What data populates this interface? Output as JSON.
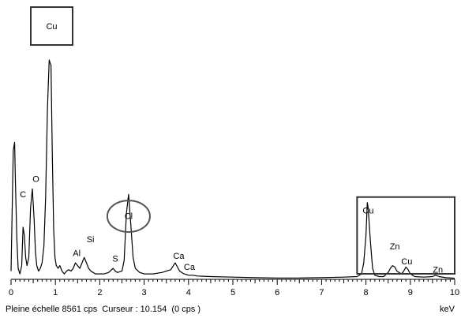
{
  "chart_data": {
    "type": "line",
    "xlim": [
      0,
      10
    ],
    "x_ticks": [
      "0",
      "1",
      "2",
      "3",
      "4",
      "5",
      "6",
      "7",
      "8",
      "9",
      "10"
    ],
    "xlabel": "keV",
    "grid": false,
    "full_scale_cps": 8561,
    "footer_text": "Pleine échelle 8561 cps  Curseur : 10.154  (0 cps )",
    "title_box_label": "Cu",
    "highlight_circle": {
      "element": "Cl",
      "x": 2.65
    },
    "highlight_box": {
      "x_range": [
        7.8,
        10.0
      ],
      "y_range": [
        0,
        3000
      ]
    },
    "series": [
      {
        "x": [
          0.0,
          0.05,
          0.08,
          0.1,
          0.13,
          0.16,
          0.2,
          0.24,
          0.27,
          0.3,
          0.33,
          0.36,
          0.4,
          0.44,
          0.48,
          0.52,
          0.55,
          0.58,
          0.62,
          0.66,
          0.7,
          0.74,
          0.78,
          0.82,
          0.86,
          0.9,
          0.93,
          0.96,
          0.99,
          1.02,
          1.06,
          1.1,
          1.15,
          1.2,
          1.25,
          1.3,
          1.35,
          1.4,
          1.45,
          1.5,
          1.55,
          1.6,
          1.65,
          1.7,
          1.75,
          1.8,
          1.85,
          1.9,
          2.0,
          2.1,
          2.2,
          2.3,
          2.35,
          2.4,
          2.5,
          2.55,
          2.6,
          2.65,
          2.7,
          2.75,
          2.8,
          2.9,
          3.0,
          3.2,
          3.4,
          3.6,
          3.7,
          3.8,
          3.9,
          4.0,
          4.1,
          4.2,
          4.5,
          5.0,
          5.5,
          6.0,
          6.5,
          7.0,
          7.5,
          7.8,
          7.9,
          7.95,
          8.0,
          8.03,
          8.05,
          8.1,
          8.15,
          8.2,
          8.3,
          8.4,
          8.5,
          8.55,
          8.6,
          8.65,
          8.7,
          8.8,
          8.85,
          8.9,
          8.95,
          9.0,
          9.1,
          9.3,
          9.5,
          9.57,
          9.65,
          9.8,
          10.0
        ],
        "y": [
          300,
          4700,
          5000,
          3500,
          1500,
          400,
          200,
          500,
          1900,
          1600,
          800,
          500,
          800,
          2600,
          3300,
          2200,
          1000,
          500,
          300,
          400,
          600,
          1200,
          3000,
          6200,
          8000,
          7800,
          4500,
          1800,
          800,
          500,
          400,
          500,
          300,
          200,
          300,
          350,
          300,
          400,
          600,
          500,
          400,
          600,
          800,
          600,
          400,
          300,
          250,
          200,
          200,
          200,
          250,
          400,
          300,
          250,
          300,
          700,
          2400,
          3100,
          2000,
          800,
          400,
          250,
          200,
          200,
          250,
          350,
          600,
          300,
          200,
          150,
          150,
          120,
          100,
          80,
          60,
          50,
          50,
          60,
          80,
          100,
          200,
          600,
          1600,
          2800,
          2600,
          1400,
          400,
          150,
          100,
          100,
          250,
          400,
          500,
          450,
          300,
          200,
          300,
          450,
          350,
          200,
          100,
          80,
          100,
          150,
          100,
          60,
          40
        ]
      }
    ],
    "peak_labels": [
      {
        "text": "C",
        "x": 0.27,
        "y": 3000
      },
      {
        "text": "O",
        "x": 0.56,
        "y": 3550
      },
      {
        "text": "Al",
        "x": 1.48,
        "y": 850
      },
      {
        "text": "Si",
        "x": 1.79,
        "y": 1350
      },
      {
        "text": "S",
        "x": 2.35,
        "y": 650
      },
      {
        "text": "Cl",
        "x": 2.65,
        "y": 2200
      },
      {
        "text": "Ca",
        "x": 3.78,
        "y": 750
      },
      {
        "text": "Ca",
        "x": 4.02,
        "y": 350
      },
      {
        "text": "Cu",
        "x": 8.05,
        "y": 2400
      },
      {
        "text": "Zn",
        "x": 8.65,
        "y": 1100
      },
      {
        "text": "Cu",
        "x": 8.92,
        "y": 550
      },
      {
        "text": "Zn",
        "x": 9.62,
        "y": 250
      }
    ]
  }
}
